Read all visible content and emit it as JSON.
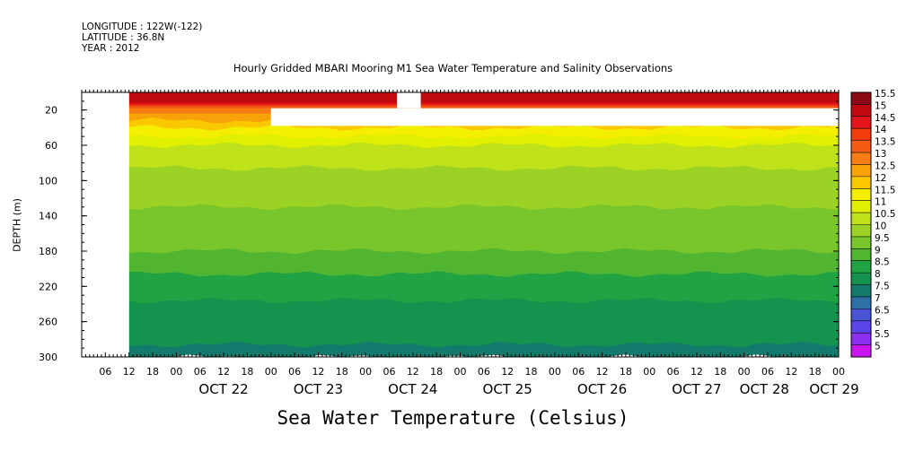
{
  "header": {
    "longitude": "LONGITUDE : 122W(-122)",
    "latitude": "LATITUDE : 36.8N",
    "year": "YEAR : 2012"
  },
  "chart_data": {
    "type": "heatmap",
    "title": "Hourly Gridded MBARI Mooring M1 Sea Water Temperature and Salinity Observations",
    "xlabel": "Sea Water Temperature (Celsius)",
    "ylabel": "DEPTH (m)",
    "x_range": [
      "2012-10-21T00:00",
      "2012-10-29T00:00"
    ],
    "data_start": "2012-10-21T12:00",
    "ylim": [
      300,
      0
    ],
    "y_ticks": [
      20,
      60,
      100,
      140,
      180,
      220,
      260,
      300
    ],
    "x_hour_ticks": [
      "06",
      "12",
      "18",
      "00",
      "06",
      "12",
      "18",
      "00",
      "06",
      "12",
      "18",
      "00",
      "06",
      "12",
      "18",
      "00",
      "06",
      "12",
      "18",
      "00",
      "06",
      "12",
      "18",
      "00",
      "06",
      "12",
      "18",
      "00",
      "06",
      "12",
      "18",
      "00"
    ],
    "x_day_labels": [
      "OCT 22",
      "OCT 23",
      "OCT 24",
      "OCT 25",
      "OCT 26",
      "OCT 27",
      "OCT 28",
      "OCT 29"
    ],
    "colorbar": {
      "levels": [
        "15.5",
        "15",
        "14.5",
        "14",
        "13.5",
        "13",
        "12.5",
        "12",
        "11.5",
        "11",
        "10.5",
        "10",
        "9.5",
        "9",
        "8.5",
        "8",
        "7.5",
        "7",
        "6.5",
        "6",
        "5.5",
        "5"
      ],
      "colors": [
        "#8b0a16",
        "#c00a10",
        "#e4151a",
        "#f23c0c",
        "#f45c14",
        "#f77d14",
        "#f7a208",
        "#fac800",
        "#f4ef00",
        "#e0f000",
        "#bfe21a",
        "#9bd225",
        "#79c52c",
        "#52b531",
        "#21a344",
        "#14934e",
        "#137a6c",
        "#2e6fa6",
        "#4a55d6",
        "#5b44e9",
        "#8d2fee",
        "#ca14ee"
      ]
    },
    "depth_profile": [
      {
        "depth": 10,
        "temp": 15.2
      },
      {
        "depth": 20,
        "temp": 13.2
      },
      {
        "depth": 40,
        "temp": 12.0
      },
      {
        "depth": 60,
        "temp": 11.0
      },
      {
        "depth": 80,
        "temp": 10.6
      },
      {
        "depth": 100,
        "temp": 10.3
      },
      {
        "depth": 140,
        "temp": 9.9
      },
      {
        "depth": 180,
        "temp": 9.5
      },
      {
        "depth": 220,
        "temp": 8.7
      },
      {
        "depth": 260,
        "temp": 8.2
      },
      {
        "depth": 300,
        "temp": 7.9
      }
    ],
    "missing_data": [
      {
        "from": "2012-10-21T00:00",
        "to": "2012-10-21T12:00",
        "depth_from": 0,
        "depth_to": 300
      },
      {
        "from": "2012-10-23T00:00",
        "to": "2012-10-29T00:00",
        "depth_from": 18,
        "depth_to": 38
      },
      {
        "from": "2012-10-24T08:00",
        "to": "2012-10-24T14:00",
        "depth_from": 0,
        "depth_to": 18
      }
    ]
  }
}
